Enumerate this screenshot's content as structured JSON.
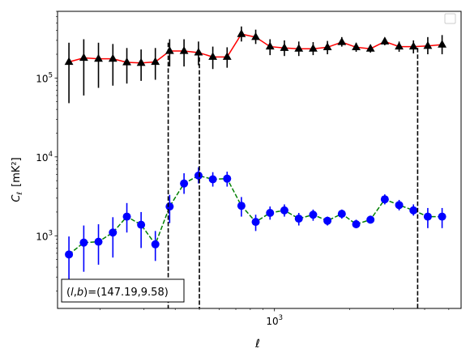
{
  "chart_data": {
    "type": "line",
    "title": "",
    "xlabel": "ℓ",
    "ylabel_main": "C",
    "ylabel_sub": "ℓ",
    "ylabel_unit": "[mK²]",
    "xscale": "log",
    "yscale": "log",
    "xlim": [
      135,
      5600
    ],
    "ylim": [
      120,
      700000
    ],
    "x_tick_labels": [
      {
        "value": 1000,
        "base": "10",
        "exp": "3"
      }
    ],
    "y_tick_labels": [
      {
        "value": 1000,
        "base": "10",
        "exp": "3"
      },
      {
        "value": 10000,
        "base": "10",
        "exp": "4"
      },
      {
        "value": 100000,
        "base": "10",
        "exp": "5"
      }
    ],
    "annotation": "(l,b)=(147.19,9.58)",
    "annotation_parts": {
      "open": "(",
      "l": "l",
      "comma": ",",
      "b": "b",
      "close": ")",
      "values": "=(147.19,9.58)"
    },
    "legend": {
      "position": "top-right",
      "entries": []
    },
    "vlines": [
      {
        "x": 375,
        "ytop": 280000
      },
      {
        "x": 500,
        "ytop": 220000
      },
      {
        "x": 3750,
        "ytop": 240000
      }
    ],
    "series": [
      {
        "color": "#ff0000",
        "line_style": "solid",
        "marker": "triangle",
        "marker_color": "#000000",
        "errorbar_color": "#000000",
        "x": [
          150,
          172,
          197,
          225,
          256,
          292,
          333,
          380,
          434,
          496,
          566,
          646,
          737,
          841,
          960,
          1096,
          1252,
          1429,
          1631,
          1862,
          2126,
          2426,
          2769,
          3161,
          3608,
          4118,
          4700
        ],
        "y": [
          160000,
          180000,
          175000,
          175000,
          158000,
          155000,
          160000,
          220000,
          220000,
          210000,
          185000,
          185000,
          360000,
          330000,
          250000,
          240000,
          235000,
          235000,
          245000,
          285000,
          245000,
          235000,
          290000,
          250000,
          250000,
          255000,
          265000
        ],
        "y_low": [
          48000,
          60000,
          75000,
          80000,
          85000,
          92000,
          95000,
          140000,
          140000,
          145000,
          130000,
          135000,
          290000,
          270000,
          195000,
          190000,
          190000,
          195000,
          200000,
          250000,
          215000,
          210000,
          260000,
          215000,
          205000,
          200000,
          200000
        ],
        "y_high": [
          280000,
          310000,
          280000,
          270000,
          240000,
          230000,
          240000,
          310000,
          310000,
          290000,
          250000,
          245000,
          450000,
          410000,
          310000,
          300000,
          290000,
          285000,
          295000,
          330000,
          280000,
          265000,
          325000,
          290000,
          300000,
          330000,
          350000
        ]
      },
      {
        "color": "#008000",
        "line_style": "dashed",
        "marker": "circle",
        "marker_color": "#0000ff",
        "errorbar_color": "#0000ff",
        "x": [
          150,
          172,
          197,
          225,
          256,
          292,
          333,
          380,
          434,
          496,
          566,
          646,
          737,
          841,
          960,
          1096,
          1252,
          1429,
          1631,
          1862,
          2126,
          2426,
          2769,
          3161,
          3608,
          4118,
          4700
        ],
        "y": [
          580,
          820,
          840,
          1100,
          1750,
          1380,
          780,
          2350,
          4600,
          5800,
          5200,
          5300,
          2400,
          1500,
          1950,
          2100,
          1650,
          1850,
          1550,
          1900,
          1400,
          1600,
          2900,
          2450,
          2100,
          1750,
          1750
        ],
        "y_low": [
          160,
          350,
          430,
          530,
          1100,
          700,
          480,
          1450,
          3400,
          4600,
          4200,
          4200,
          1750,
          1150,
          1600,
          1750,
          1350,
          1550,
          1350,
          1650,
          1250,
          1450,
          2500,
          2100,
          1800,
          1250,
          1250
        ],
        "y_high": [
          980,
          1350,
          1400,
          1720,
          2600,
          2000,
          1150,
          3300,
          6200,
          7400,
          6400,
          6500,
          3100,
          1850,
          2350,
          2500,
          1950,
          2150,
          1750,
          2150,
          1600,
          1800,
          3350,
          2850,
          2500,
          2250,
          2250
        ]
      }
    ]
  }
}
